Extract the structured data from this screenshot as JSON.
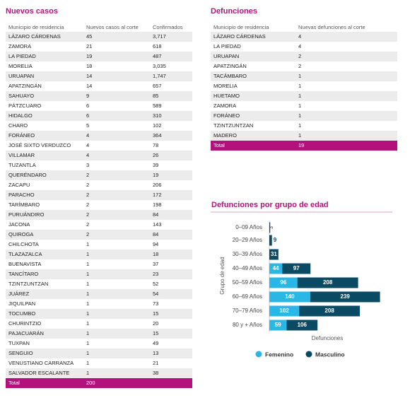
{
  "cases_table": {
    "title": "Nuevos casos",
    "columns": [
      "Municipio de residencia",
      "Nuevos casos al corte",
      "Confirmados"
    ],
    "rows": [
      [
        "LÁZARO CÁRDENAS",
        "45",
        "3,717"
      ],
      [
        "ZAMORA",
        "21",
        "618"
      ],
      [
        "LA PIEDAD",
        "19",
        "487"
      ],
      [
        "MORELIA",
        "18",
        "3,035"
      ],
      [
        "URUAPAN",
        "14",
        "1,747"
      ],
      [
        "APATZINGÁN",
        "14",
        "657"
      ],
      [
        "SAHUAYO",
        "9",
        "85"
      ],
      [
        "PÁTZCUARO",
        "6",
        "589"
      ],
      [
        "HIDALGO",
        "6",
        "310"
      ],
      [
        "CHARO",
        "5",
        "102"
      ],
      [
        "FORÁNEO",
        "4",
        "364"
      ],
      [
        "JOSÉ SIXTO VERDUZCO",
        "4",
        "78"
      ],
      [
        "VILLAMAR",
        "4",
        "26"
      ],
      [
        "TUZANTLA",
        "3",
        "39"
      ],
      [
        "QUERÉNDARO",
        "2",
        "19"
      ],
      [
        "ZACAPU",
        "2",
        "206"
      ],
      [
        "PARACHO",
        "2",
        "172"
      ],
      [
        "TARÍMBARO",
        "2",
        "198"
      ],
      [
        "PURUÁNDIRO",
        "2",
        "84"
      ],
      [
        "JACONA",
        "2",
        "143"
      ],
      [
        "QUIROGA",
        "2",
        "84"
      ],
      [
        "CHILCHOTA",
        "1",
        "94"
      ],
      [
        "TLAZAZALCA",
        "1",
        "18"
      ],
      [
        "BUENAVISTA",
        "1",
        "37"
      ],
      [
        "TANCÍTARO",
        "1",
        "23"
      ],
      [
        "TZINTZUNTZAN",
        "1",
        "52"
      ],
      [
        "JUÁREZ",
        "1",
        "54"
      ],
      [
        "JIQUILPAN",
        "1",
        "73"
      ],
      [
        "TOCUMBO",
        "1",
        "15"
      ],
      [
        "CHURINTZIO",
        "1",
        "20"
      ],
      [
        "PAJACUARÁN",
        "1",
        "15"
      ],
      [
        "TUXPAN",
        "1",
        "49"
      ],
      [
        "SENGUIO",
        "1",
        "13"
      ],
      [
        "VENUSTIANO CARRANZA",
        "1",
        "21"
      ],
      [
        "SALVADOR ESCALANTE",
        "1",
        "38"
      ]
    ],
    "total": [
      "Total",
      "200"
    ]
  },
  "deaths_table": {
    "title": "Defunciones",
    "columns": [
      "Municipio de residencia",
      "Nuevas defunciones al corte"
    ],
    "rows": [
      [
        "LÁZARO CÁRDENAS",
        "4"
      ],
      [
        "LA PIEDAD",
        "4"
      ],
      [
        "URUAPAN",
        "2"
      ],
      [
        "APATZINGÁN",
        "2"
      ],
      [
        "TACÁMBARO",
        "1"
      ],
      [
        "MORELIA",
        "1"
      ],
      [
        "HUETAMO",
        "1"
      ],
      [
        "ZAMORA",
        "1"
      ],
      [
        "FORÁNEO",
        "1"
      ],
      [
        "TZINTZUNTZAN",
        "1"
      ],
      [
        "MADERO",
        "1"
      ]
    ],
    "total": [
      "Total",
      "19"
    ]
  },
  "chart_data": {
    "type": "bar",
    "orientation": "horizontal",
    "stacked": true,
    "title": "Defunciones por grupo de edad",
    "xlabel": "Defunciones",
    "ylabel": "Grupo de edad",
    "categories": [
      "0–09 Años",
      "20–29 Años",
      "30–39 Años",
      "40–49 Años",
      "50–59 Años",
      "60–69 Años",
      "70–79 Años",
      "80 y + Años"
    ],
    "series": [
      {
        "name": "Femenino",
        "color": "#2bb7e6",
        "values": [
          null,
          null,
          null,
          44,
          96,
          140,
          102,
          59
        ]
      },
      {
        "name": "Masculino",
        "color": "#0b4a63",
        "values": [
          3,
          9,
          31,
          97,
          208,
          239,
          208,
          106
        ]
      }
    ],
    "xlim": [
      0,
      380
    ],
    "legend": "bottom"
  }
}
